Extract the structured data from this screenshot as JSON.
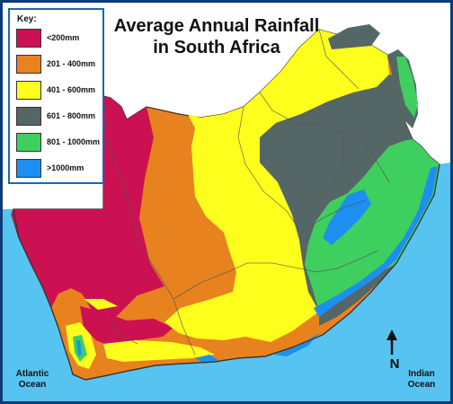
{
  "title": {
    "line1": "Average Annual Rainfall",
    "line2": "in South Africa"
  },
  "legend": {
    "heading": "Key:",
    "items": [
      {
        "label": "<200mm",
        "color": "#cc1152"
      },
      {
        "label": "201 - 400mm",
        "color": "#e8821f"
      },
      {
        "label": "401 - 600mm",
        "color": "#ffff1e"
      },
      {
        "label": "601 - 800mm",
        "color": "#556666"
      },
      {
        "label": "801 - 1000mm",
        "color": "#3ecf5e"
      },
      {
        "label": ">1000mm",
        "color": "#1d8ff0"
      }
    ]
  },
  "oceans": {
    "atlantic": {
      "line1": "Atlantic",
      "line2": "Ocean"
    },
    "indian": {
      "line1": "Indian",
      "line2": "Ocean"
    }
  },
  "north_arrow": {
    "letter": "N"
  },
  "colors": {
    "sea": "#57c3f0",
    "land_outside": "#ffffff",
    "frame": "#0d3b7a",
    "borders": "#444444"
  }
}
